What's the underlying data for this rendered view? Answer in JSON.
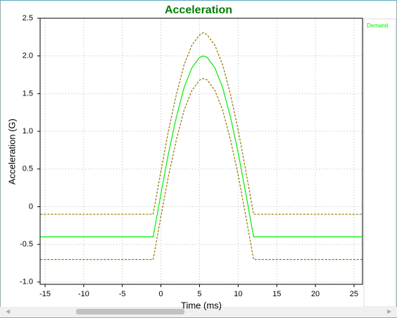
{
  "chart_data": {
    "type": "line",
    "title": "Acceleration",
    "x_label": "Time (ms)",
    "y_label": "Acceleration (G)",
    "x": [
      -15.6,
      -1,
      0,
      1,
      2,
      3,
      4,
      5,
      5.5,
      6,
      7,
      8,
      9,
      10,
      11,
      12,
      26.1
    ],
    "series": [
      {
        "name": "Demand",
        "color": "#00ee00",
        "dashed": false,
        "values": [
          -0.4,
          -0.4,
          0.17,
          0.72,
          1.19,
          1.58,
          1.84,
          1.98,
          2.0,
          1.98,
          1.84,
          1.58,
          1.19,
          0.72,
          0.17,
          -0.4,
          -0.4
        ]
      },
      {
        "color": "#8b7500",
        "dashed": true,
        "values": [
          -0.1,
          -0.1,
          0.47,
          1.02,
          1.49,
          1.88,
          2.14,
          2.28,
          2.31,
          2.28,
          2.14,
          1.88,
          1.49,
          1.02,
          0.47,
          -0.1,
          -0.1
        ]
      },
      {
        "color": "#8b7500",
        "dashed": true,
        "values": [
          -0.7,
          -0.7,
          -0.13,
          0.42,
          0.89,
          1.28,
          1.54,
          1.68,
          1.7,
          1.68,
          1.54,
          1.28,
          0.89,
          0.42,
          -0.13,
          -0.7,
          -0.7
        ]
      }
    ],
    "xlim": [
      -15.64,
      26.1
    ],
    "ylim": [
      -1.03,
      2.5
    ],
    "xticks": [
      -15,
      -10,
      -5,
      0,
      5,
      10,
      15,
      20,
      25
    ],
    "yticks": [
      2.5,
      {
        "value": 2,
        "label": "2.0"
      },
      1.5,
      {
        "value": 1,
        "label": "1.0"
      },
      0.5,
      0,
      -0.5,
      {
        "value": -1,
        "label": "-1.0"
      }
    ],
    "grid": true,
    "legend": "right"
  }
}
